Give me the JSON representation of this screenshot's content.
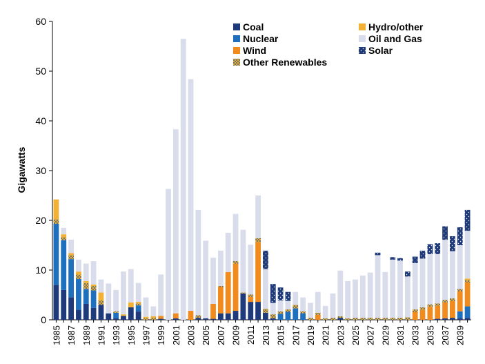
{
  "chart_data": {
    "type": "bar",
    "stacked": true,
    "title": "",
    "xlabel": "",
    "ylabel": "Gigawatts",
    "ylim": [
      0,
      60
    ],
    "yticks": [
      0,
      10,
      20,
      30,
      40,
      50,
      60
    ],
    "grid": false,
    "legend_position": "top",
    "categories": [
      "1985",
      "1986",
      "1987",
      "1988",
      "1989",
      "1990",
      "1991",
      "1992",
      "1993",
      "1994",
      "1995",
      "1996",
      "1997",
      "1998",
      "1999",
      "2000",
      "2001",
      "2002",
      "2003",
      "2004",
      "2005",
      "2006",
      "2007",
      "2008",
      "2009",
      "2010",
      "2011",
      "2012",
      "2013",
      "2014",
      "2015",
      "2016",
      "2017",
      "2018",
      "2019",
      "2020",
      "2021",
      "2022",
      "2023",
      "2024",
      "2025",
      "2026",
      "2027",
      "2028",
      "2029",
      "2030",
      "2031",
      "2032",
      "2033",
      "2034",
      "2035",
      "2036",
      "2037",
      "2038",
      "2039",
      "2040"
    ],
    "xtick_labels": [
      "1985",
      "",
      "1987",
      "",
      "1989",
      "",
      "1991",
      "",
      "1993",
      "",
      "1995",
      "",
      "1997",
      "",
      "1999",
      "",
      "2001",
      "",
      "2003",
      "",
      "2005",
      "",
      "2007",
      "",
      "2009",
      "",
      "2011",
      "",
      "2013",
      "",
      "2015",
      "",
      "2017",
      "",
      "2019",
      "",
      "2021",
      "",
      "2023",
      "",
      "2025",
      "",
      "2027",
      "",
      "2029",
      "",
      "2031",
      "",
      "2033",
      "",
      "2035",
      "",
      "2037",
      "",
      "2039",
      ""
    ],
    "series": [
      {
        "name": "Coal",
        "color": "#1f3a7a",
        "pattern": "solid",
        "values": [
          7,
          6,
          4.5,
          2,
          3.2,
          2.4,
          3,
          1.3,
          0.3,
          0.8,
          2.5,
          1.7,
          0,
          0,
          0.2,
          0,
          0.3,
          0,
          0,
          0.4,
          0.3,
          0.2,
          1.3,
          1.3,
          1.8,
          5.3,
          3.6,
          3.6,
          1.4,
          0.3,
          0,
          0,
          0,
          0,
          0,
          0,
          0,
          0,
          0.4,
          0,
          0,
          0,
          0,
          0,
          0,
          0,
          0,
          0,
          0,
          0,
          0,
          0.2,
          0.3,
          0.4,
          0.3,
          0.4
        ]
      },
      {
        "name": "Nuclear",
        "color": "#1f6fbf",
        "pattern": "solid",
        "values": [
          12.3,
          10,
          7.7,
          6.2,
          3,
          3.5,
          0,
          0,
          1.1,
          0,
          0,
          1.2,
          0,
          0,
          0,
          0,
          0,
          0,
          0,
          0,
          0,
          0,
          0,
          0,
          0,
          0,
          0,
          0,
          0,
          0,
          1.2,
          1.6,
          2.3,
          1.3,
          0,
          0,
          0,
          0,
          0,
          0,
          0,
          0,
          0,
          0,
          0,
          0,
          0,
          0,
          0,
          0,
          0,
          0,
          0,
          0,
          1.4,
          2.3
        ]
      },
      {
        "name": "Wind",
        "color": "#f28b1e",
        "pattern": "solid",
        "values": [
          0,
          0,
          0,
          0,
          0,
          0,
          0,
          0,
          0,
          0,
          0,
          0,
          0,
          0,
          0.6,
          0,
          1,
          0,
          1.8,
          0,
          0,
          3,
          5.3,
          8.3,
          9.5,
          0,
          1,
          12,
          0,
          0,
          0,
          0,
          0,
          0,
          0,
          1,
          0,
          0,
          0,
          0,
          0,
          0,
          0,
          0,
          0,
          0,
          0,
          0,
          1.6,
          2,
          2.6,
          2.6,
          3.2,
          3.4,
          4,
          4.8
        ]
      },
      {
        "name": "Other Renewables",
        "color": "#e6b43c",
        "pattern": "dots",
        "values": [
          0.9,
          0.6,
          0.8,
          0.9,
          1.2,
          0.9,
          0.9,
          0,
          0.3,
          0,
          0,
          0.4,
          0.3,
          0.4,
          0,
          0,
          0,
          0,
          0,
          0.5,
          0,
          0,
          0.2,
          0,
          0.5,
          0.2,
          0.5,
          0.8,
          0.8,
          0.8,
          0.5,
          0.5,
          0.7,
          0.4,
          0.4,
          0.4,
          0.3,
          0.4,
          0.3,
          0.3,
          0.4,
          0.4,
          0.4,
          0.4,
          0.4,
          0.4,
          0.4,
          0.5,
          0.5,
          0.5,
          0.5,
          0.5,
          0.5,
          0.5,
          0.5,
          0.5
        ]
      },
      {
        "name": "Hydro/other",
        "color": "#f2b134",
        "pattern": "solid",
        "values": [
          4,
          0.6,
          0.4,
          0.6,
          0.4,
          0.3,
          1.6,
          0,
          0,
          0.3,
          1,
          0.3,
          0.3,
          0.3,
          0,
          0,
          0,
          0,
          0,
          0,
          0,
          0,
          0,
          0,
          0,
          0,
          0,
          0,
          0,
          0,
          0,
          0,
          0,
          0,
          0,
          0,
          0,
          0,
          0,
          0,
          0,
          0,
          0,
          0,
          0,
          0,
          0,
          0,
          0,
          0,
          0,
          0,
          0,
          0,
          0,
          0.3
        ]
      },
      {
        "name": "Oil and Gas",
        "color": "#d9dcea",
        "pattern": "solid",
        "values": [
          0,
          1.3,
          2.7,
          2.4,
          3.5,
          4.7,
          2.6,
          6,
          4.3,
          8.6,
          6.7,
          3.8,
          3.9,
          2,
          8.3,
          26.3,
          37,
          56.5,
          46.6,
          21.2,
          15.6,
          9.3,
          7.1,
          7.9,
          9.5,
          12.6,
          10,
          8.6,
          8,
          2.3,
          2.2,
          1.7,
          2.6,
          2.8,
          3,
          4.2,
          2.5,
          4.9,
          9.2,
          7.5,
          7.7,
          8.5,
          9.1,
          12.6,
          9.2,
          11.7,
          11.5,
          8.2,
          9.3,
          9.8,
          10.1,
          9.9,
          12.1,
          9.5,
          8.8,
          9.6
        ]
      },
      {
        "name": "Solar",
        "color": "#1f3a7a",
        "pattern": "dots-light",
        "values": [
          0,
          0,
          0,
          0,
          0,
          0,
          0,
          0,
          0,
          0,
          0,
          0,
          0,
          0,
          0,
          0,
          0,
          0,
          0,
          0,
          0,
          0,
          0,
          0,
          0,
          0,
          0,
          0,
          3.7,
          3.8,
          2.6,
          1.8,
          0,
          0,
          0,
          0,
          0,
          0,
          0,
          0,
          0,
          0,
          0,
          0.5,
          0,
          0.5,
          0.5,
          1,
          1.3,
          1.6,
          2,
          2.2,
          2.7,
          3,
          3.6,
          4.2
        ]
      }
    ],
    "legend": [
      {
        "series": "Coal",
        "column": 0
      },
      {
        "series": "Hydro/other",
        "column": 1
      },
      {
        "series": "Nuclear",
        "column": 0
      },
      {
        "series": "Oil and Gas",
        "column": 1
      },
      {
        "series": "Wind",
        "column": 0
      },
      {
        "series": "Solar",
        "column": 1
      },
      {
        "series": "Other Renewables",
        "column": 0
      }
    ]
  }
}
